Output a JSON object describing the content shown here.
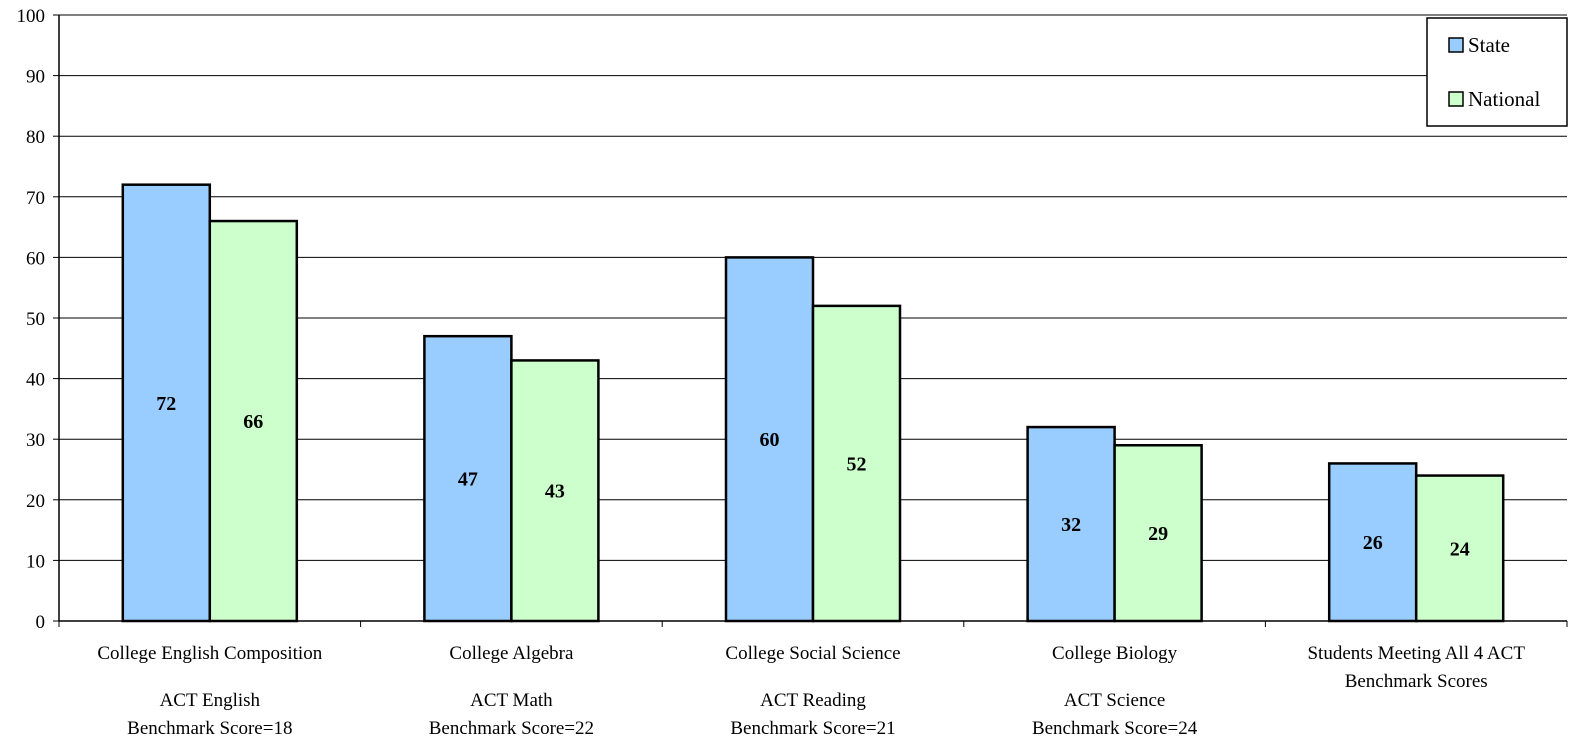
{
  "chart_data": {
    "type": "bar",
    "categories": [
      [
        "College English Composition",
        "",
        "ACT English",
        "Benchmark Score=18"
      ],
      [
        "College Algebra",
        "",
        "ACT Math",
        "Benchmark Score=22"
      ],
      [
        "College Social Science",
        "",
        "ACT Reading",
        "Benchmark Score=21"
      ],
      [
        "College Biology",
        "",
        "ACT Science",
        "Benchmark Score=24"
      ],
      [
        "Students Meeting All 4 ACT",
        "Benchmark Scores"
      ]
    ],
    "series": [
      {
        "name": "State",
        "values": [
          72,
          47,
          60,
          32,
          26
        ],
        "color": "#99CCFF"
      },
      {
        "name": "National",
        "values": [
          66,
          43,
          52,
          29,
          24
        ],
        "color": "#CCFFCC"
      }
    ],
    "yticks": [
      "0",
      "10",
      "20",
      "30",
      "40",
      "50",
      "60",
      "70",
      "80",
      "90",
      "100"
    ],
    "ylim": [
      0,
      100
    ],
    "grid": true,
    "legend_position": "top-right",
    "title": "",
    "xlabel": "",
    "ylabel": ""
  }
}
